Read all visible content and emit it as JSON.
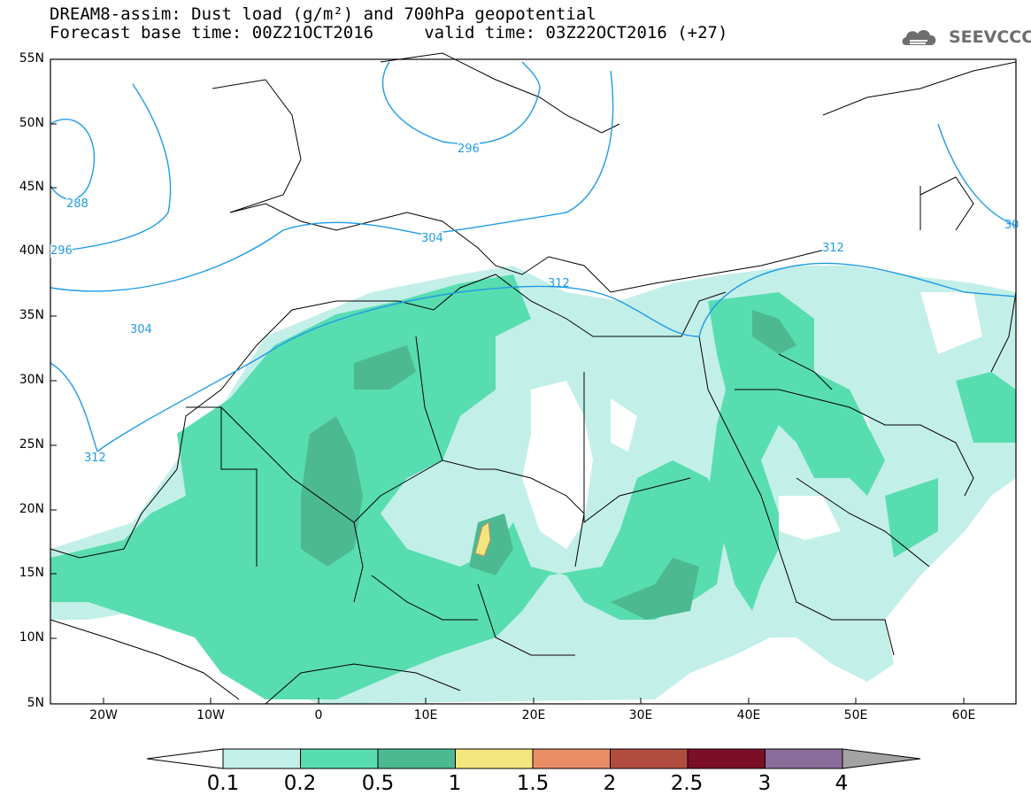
{
  "title": {
    "line1": "DREAM8-assim: Dust load (g/m²) and 700hPa geopotential",
    "line2": "Forecast base time: 00Z21OCT2016     valid time: 03Z22OCT2016 (+27)"
  },
  "logo": {
    "text": "SEEVCCC",
    "icon": "cloud-icon"
  },
  "map": {
    "lat_labels": [
      "55N",
      "50N",
      "45N",
      "40N",
      "35N",
      "30N",
      "25N",
      "20N",
      "15N",
      "10N",
      "5N"
    ],
    "lon_labels": [
      "20W",
      "10W",
      "0",
      "10E",
      "20E",
      "30E",
      "40E",
      "50E",
      "60E"
    ],
    "contour_labels": [
      "288",
      "296",
      "296",
      "304",
      "304",
      "312",
      "312",
      "312",
      "30"
    ],
    "colors": {
      "land_border": "#000000",
      "contour": "#1e9be6",
      "level_0_1": "#c3efe9",
      "level_0_2": "#58ddb0",
      "level_0_5": "#4db991",
      "level_1": "#f4e67e",
      "level_1_5": "#e98d67",
      "level_2": "#b04d3f",
      "level_2_5": "#7b0f2a",
      "level_3": "#8a6b9a",
      "level_4": "#a3a3a3"
    }
  },
  "colorbar": {
    "labels": [
      "0.1",
      "0.2",
      "0.5",
      "1",
      "1.5",
      "2",
      "2.5",
      "3",
      "4"
    ],
    "colors": [
      "#c3efe9",
      "#58ddb0",
      "#4db991",
      "#f4e67e",
      "#e98d67",
      "#b04d3f",
      "#7b0f2a",
      "#8a6b9a"
    ],
    "under_color": "#ffffff",
    "over_color": "#a3a3a3"
  }
}
